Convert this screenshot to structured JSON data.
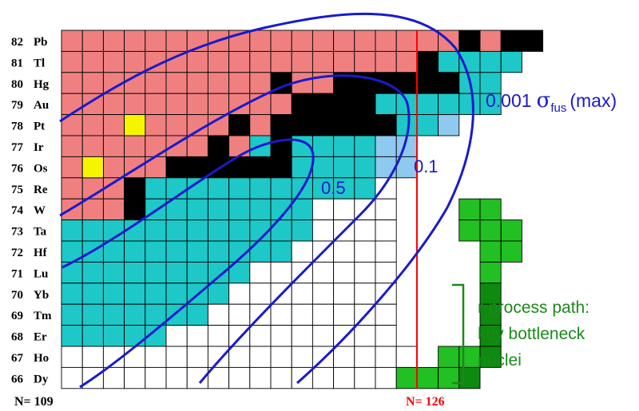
{
  "chart_data": {
    "type": "heatmap",
    "title": "",
    "n_min": 109,
    "n_max": 128,
    "z_max": 82,
    "z_min": 66,
    "elements": [
      "Pb",
      "Tl",
      "Hg",
      "Au",
      "Pt",
      "Ir",
      "Os",
      "Re",
      "W",
      "Ta",
      "Hf",
      "Lu",
      "Yb",
      "Tm",
      "Er",
      "Ho",
      "Dy"
    ],
    "z_labels": [
      "82",
      "81",
      "80",
      "79",
      "78",
      "77",
      "76",
      "75",
      "74",
      "73",
      "72",
      "71",
      "70",
      "69",
      "68",
      "67",
      "66"
    ],
    "n_left_label": "N= 109",
    "n_right_label": "N= 126",
    "n_right_line_at": 126,
    "legend_colors": {
      "pink": "#f08080",
      "black": "#000000",
      "cyan": "#1ec8c8",
      "lightblue": "#8ecaf0",
      "yellow": "#f5f500",
      "white": "#ffffff",
      "green": "#22c022",
      "darkgreen": "#0e8a0e"
    },
    "color_codes": "p=pink, k=black, c=cyan, l=lightblue, y=yellow, w=white, g=green, d=darkgreen, .=no cell",
    "rows": [
      "pppppppppppppppppppkpkk",
      "pppppppppppppppppkcccc",
      "ppppppppppkppkkkkkkcc",
      "pppppppppppkkkkcccccc",
      "ppppppppkpkkkkkkccl",
      "pppppppkpckccccll",
      "pppppkkkkkkccccll",
      "pppkcccccccccccw",
      "pppkccccccccwwww...gg",
      "ccccccccccccwwww...ggg",
      "cccccccccccwwwww....gg",
      "cccccccccwwwwwww....g",
      "ccccccccwwwwwwww....d",
      "cccccccwwwwwwwww....d",
      "cccccwwwwwwwwwww....d",
      "wwwwwwwwwwwwwwwww.ggd",
      "wwwwwwwwwwwwwwwwgggd"
    ],
    "contour_labels": [
      "0.001 σ_fus (max)",
      "0.5",
      "0.1"
    ],
    "annotation": "r-process path: key bottleneck nuclei"
  },
  "labels": {
    "contour_outer": "0.001",
    "sigma": "σ",
    "sub": "fus",
    "max": "(max)",
    "contour_mid": "0.5",
    "contour_inner": "0.1",
    "annot_line1": "r-process path:",
    "annot_line2": "key bottleneck",
    "annot_line3": "nuclei"
  }
}
